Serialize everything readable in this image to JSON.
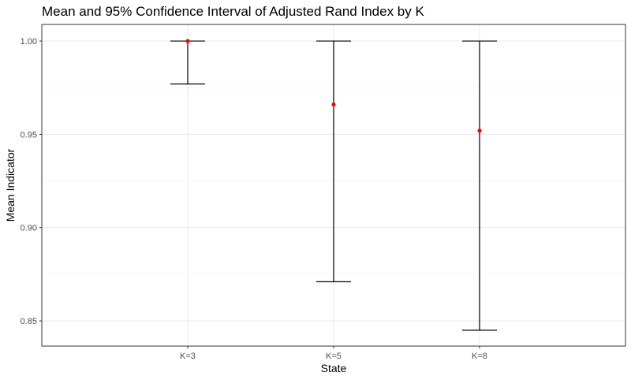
{
  "chart_data": {
    "type": "errorbar",
    "title": "Mean and 95% Confidence Interval of Adjusted Rand Index by K",
    "xlabel": "State",
    "ylabel": "Mean Indicator",
    "categories": [
      "K=3",
      "K=5",
      "K=8"
    ],
    "series": [
      {
        "mean": [
          1.0,
          0.966,
          0.952
        ],
        "lower": [
          0.977,
          0.871,
          0.845
        ],
        "upper": [
          1.0,
          1.0,
          1.0
        ]
      }
    ],
    "ylim": [
      0.8365,
      1.0089
    ],
    "yticks": [
      0.85,
      0.9,
      0.95,
      1.0
    ],
    "ytick_labels": [
      "0.85",
      "0.90",
      "0.95",
      "1.00"
    ],
    "grid": true,
    "colors": {
      "point": "#ff0000",
      "errorbar": "#000000",
      "grid_major": "#ebebeb",
      "grid_minor": "#f3f3f3",
      "panel_border": "#333333"
    }
  }
}
